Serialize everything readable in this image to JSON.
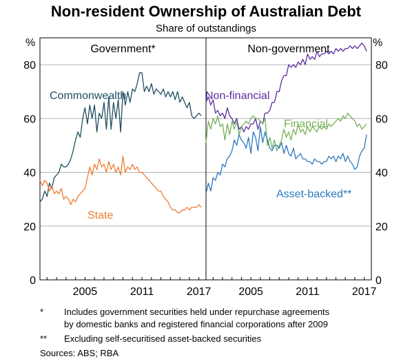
{
  "chart_data": {
    "type": "line",
    "title": "Non-resident Ownership of Australian Debt",
    "subtitle": "Share of outstandings",
    "y_unit": "%",
    "ylim": [
      0,
      90
    ],
    "yticks": [
      0,
      20,
      40,
      60,
      80
    ],
    "xlim": [
      2000.25,
      2017.75
    ],
    "xticks": [
      2005,
      2011,
      2017
    ],
    "grid": true,
    "panels": [
      {
        "title": "Government*",
        "series": [
          {
            "name": "Commonwealth",
            "color": "#1f4e5f",
            "x": [
              2000.25,
              2000.5,
              2000.75,
              2001,
              2001.25,
              2001.5,
              2001.75,
              2002,
              2002.25,
              2002.5,
              2002.75,
              2003,
              2003.25,
              2003.5,
              2003.75,
              2004,
              2004.25,
              2004.5,
              2004.75,
              2005,
              2005.25,
              2005.5,
              2005.75,
              2006,
              2006.25,
              2006.5,
              2006.75,
              2007,
              2007.25,
              2007.5,
              2007.75,
              2008,
              2008.25,
              2008.5,
              2008.75,
              2009,
              2009.25,
              2009.5,
              2009.75,
              2010,
              2010.25,
              2010.5,
              2010.75,
              2011,
              2011.25,
              2011.5,
              2011.75,
              2012,
              2012.25,
              2012.5,
              2012.75,
              2013,
              2013.25,
              2013.5,
              2013.75,
              2014,
              2014.25,
              2014.5,
              2014.75,
              2015,
              2015.25,
              2015.5,
              2015.75,
              2016,
              2016.25,
              2016.5,
              2016.75,
              2017,
              2017.25
            ],
            "values": [
              29,
              30,
              33,
              31,
              36,
              34,
              38,
              39,
              40,
              43,
              42,
              42,
              43,
              45,
              48,
              52,
              55,
              53,
              60,
              64,
              58,
              65,
              60,
              65,
              55,
              62,
              60,
              66,
              56,
              68,
              56,
              66,
              60,
              67,
              55,
              70,
              65,
              70,
              66,
              71,
              70,
              73,
              77,
              77,
              70,
              72,
              70,
              73,
              69,
              71,
              70,
              69,
              71,
              68,
              70,
              68,
              70,
              67,
              70,
              66,
              68,
              66,
              64,
              66,
              61,
              60,
              61,
              62,
              61
            ]
          },
          {
            "name": "State",
            "color": "#f07c31",
            "x": [
              2000.25,
              2000.5,
              2000.75,
              2001,
              2001.25,
              2001.5,
              2001.75,
              2002,
              2002.25,
              2002.5,
              2002.75,
              2003,
              2003.25,
              2003.5,
              2003.75,
              2004,
              2004.25,
              2004.5,
              2004.75,
              2005,
              2005.25,
              2005.5,
              2005.75,
              2006,
              2006.25,
              2006.5,
              2006.75,
              2007,
              2007.25,
              2007.5,
              2007.75,
              2008,
              2008.25,
              2008.5,
              2008.75,
              2009,
              2009.25,
              2009.5,
              2009.75,
              2010,
              2010.25,
              2010.5,
              2010.75,
              2011,
              2011.25,
              2011.5,
              2011.75,
              2012,
              2012.25,
              2012.5,
              2012.75,
              2013,
              2013.25,
              2013.5,
              2013.75,
              2014,
              2014.25,
              2014.5,
              2014.75,
              2015,
              2015.25,
              2015.5,
              2015.75,
              2016,
              2016.25,
              2016.5,
              2016.75,
              2017,
              2017.25
            ],
            "values": [
              37,
              35,
              37,
              36,
              33,
              35,
              32,
              33,
              32,
              34,
              30,
              31,
              30,
              28,
              30,
              29,
              31,
              32,
              33,
              34,
              38,
              42,
              39,
              43,
              41,
              45,
              42,
              43,
              40,
              44,
              41,
              43,
              40,
              42,
              39,
              46,
              40,
              42,
              41,
              43,
              41,
              42,
              40,
              40,
              39,
              38,
              37,
              36,
              35,
              34,
              33,
              33,
              31,
              30,
              29,
              27,
              26,
              26,
              25,
              25,
              26,
              26,
              27,
              26,
              27,
              27,
              27,
              28,
              27
            ]
          }
        ]
      },
      {
        "title": "Non-government",
        "series": [
          {
            "name": "Non-financial",
            "color": "#5b2c9f",
            "x": [
              2000.25,
              2000.5,
              2000.75,
              2001,
              2001.25,
              2001.5,
              2001.75,
              2002,
              2002.25,
              2002.5,
              2002.75,
              2003,
              2003.25,
              2003.5,
              2003.75,
              2004,
              2004.25,
              2004.5,
              2004.75,
              2005,
              2005.25,
              2005.5,
              2005.75,
              2006,
              2006.25,
              2006.5,
              2006.75,
              2007,
              2007.25,
              2007.5,
              2007.75,
              2008,
              2008.25,
              2008.5,
              2008.75,
              2009,
              2009.25,
              2009.5,
              2009.75,
              2010,
              2010.25,
              2010.5,
              2010.75,
              2011,
              2011.25,
              2011.5,
              2011.75,
              2012,
              2012.25,
              2012.5,
              2012.75,
              2013,
              2013.25,
              2013.5,
              2013.75,
              2014,
              2014.25,
              2014.5,
              2014.75,
              2015,
              2015.25,
              2015.5,
              2015.75,
              2016,
              2016.25,
              2016.5,
              2016.75,
              2017,
              2017.25
            ],
            "values": [
              66,
              68,
              65,
              67,
              62,
              63,
              61,
              62,
              60,
              64,
              61,
              60,
              58,
              60,
              56,
              57,
              55,
              57,
              56,
              58,
              58,
              60,
              56,
              59,
              58,
              62,
              62,
              63,
              66,
              66,
              70,
              70,
              74,
              76,
              76,
              80,
              79,
              80,
              79,
              81,
              80,
              82,
              80,
              84,
              82,
              83,
              82,
              85,
              83,
              84,
              84,
              85,
              84,
              85,
              84,
              86,
              85,
              86,
              85,
              86,
              86,
              87,
              86,
              87,
              86,
              87,
              88,
              87,
              85
            ]
          },
          {
            "name": "Financial",
            "color": "#77b05a",
            "x": [
              2000.25,
              2000.5,
              2000.75,
              2001,
              2001.25,
              2001.5,
              2001.75,
              2002,
              2002.25,
              2002.5,
              2002.75,
              2003,
              2003.25,
              2003.5,
              2003.75,
              2004,
              2004.25,
              2004.5,
              2004.75,
              2005,
              2005.25,
              2005.5,
              2005.75,
              2006,
              2006.25,
              2006.5,
              2006.75,
              2007,
              2007.25,
              2007.5,
              2007.75,
              2008,
              2008.25,
              2008.5,
              2008.75,
              2009,
              2009.25,
              2009.5,
              2009.75,
              2010,
              2010.25,
              2010.5,
              2010.75,
              2011,
              2011.25,
              2011.5,
              2011.75,
              2012,
              2012.25,
              2012.5,
              2012.75,
              2013,
              2013.25,
              2013.5,
              2013.75,
              2014,
              2014.25,
              2014.5,
              2014.75,
              2015,
              2015.25,
              2015.5,
              2015.75,
              2016,
              2016.25,
              2016.5,
              2016.75,
              2017,
              2017.25
            ],
            "values": [
              51,
              59,
              56,
              60,
              58,
              61,
              57,
              58,
              52,
              58,
              54,
              59,
              56,
              59,
              54,
              57,
              58,
              59,
              58,
              60,
              61,
              60,
              60,
              59,
              58,
              60,
              50,
              53,
              49,
              52,
              48,
              50,
              52,
              56,
              53,
              55,
              52,
              56,
              54,
              58,
              55,
              56,
              54,
              57,
              55,
              57,
              56,
              55,
              57,
              56,
              57,
              56,
              58,
              57,
              58,
              59,
              60,
              59,
              61,
              60,
              62,
              61,
              60,
              59,
              57,
              58,
              56,
              57,
              58
            ]
          },
          {
            "name": "Asset-backed**",
            "color": "#2c78bd",
            "x": [
              2000.25,
              2000.5,
              2000.75,
              2001,
              2001.25,
              2001.5,
              2001.75,
              2002,
              2002.25,
              2002.5,
              2002.75,
              2003,
              2003.25,
              2003.5,
              2003.75,
              2004,
              2004.25,
              2004.5,
              2004.75,
              2005,
              2005.25,
              2005.5,
              2005.75,
              2006,
              2006.25,
              2006.5,
              2006.75,
              2007,
              2007.25,
              2007.5,
              2007.75,
              2008,
              2008.25,
              2008.5,
              2008.75,
              2009,
              2009.25,
              2009.5,
              2009.75,
              2010,
              2010.25,
              2010.5,
              2010.75,
              2011,
              2011.25,
              2011.5,
              2011.75,
              2012,
              2012.25,
              2012.5,
              2012.75,
              2013,
              2013.25,
              2013.5,
              2013.75,
              2014,
              2014.25,
              2014.5,
              2014.75,
              2015,
              2015.25,
              2015.5,
              2015.75,
              2016,
              2016.25,
              2016.5,
              2016.75,
              2017,
              2017.25
            ],
            "values": [
              32,
              36,
              33,
              38,
              37,
              40,
              39,
              43,
              42,
              45,
              46,
              48,
              52,
              50,
              54,
              52,
              51,
              49,
              53,
              47,
              55,
              53,
              48,
              57,
              51,
              55,
              52,
              49,
              48,
              50,
              50,
              49,
              51,
              47,
              50,
              47,
              46,
              49,
              45,
              46,
              47,
              45,
              45,
              44,
              44,
              43,
              45,
              44,
              44,
              43,
              44,
              44,
              46,
              45,
              46,
              44,
              46,
              45,
              47,
              44,
              46,
              44,
              43,
              41,
              42,
              46,
              48,
              49,
              54
            ]
          }
        ]
      }
    ]
  },
  "notes": [
    {
      "marker": "*",
      "text": "Includes government securities held under repurchase agreements"
    },
    {
      "marker": "",
      "text": "by domestic banks and registered financial corporations after 2009"
    },
    {
      "marker": "**",
      "text": "Excluding self-securitised asset-backed securities"
    },
    {
      "marker": "",
      "text": "Sources:   ABS; RBA"
    }
  ]
}
